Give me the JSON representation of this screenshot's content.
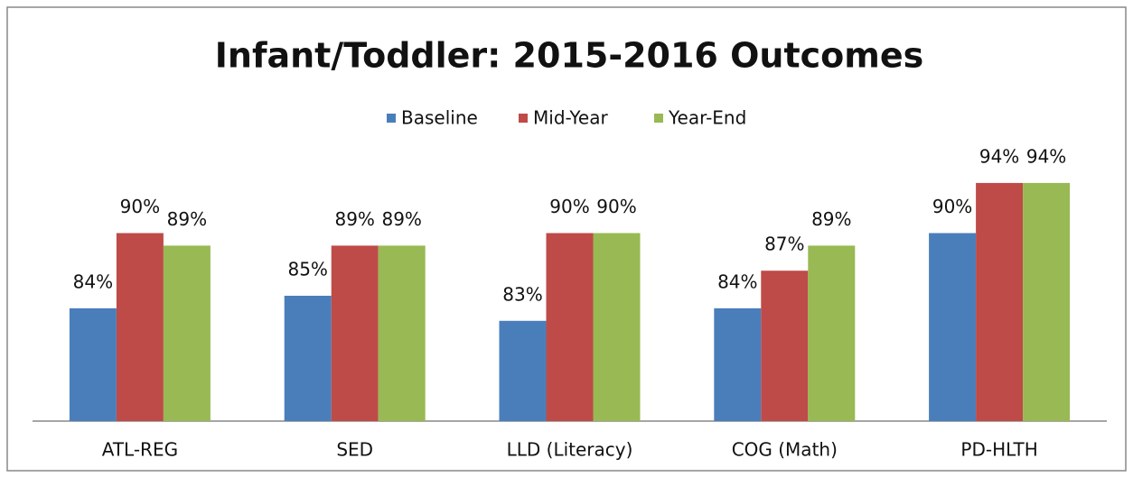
{
  "chart_data": {
    "type": "bar",
    "title": "Infant/Toddler: 2015-2016 Outcomes",
    "categories": [
      "ATL-REG",
      "SED",
      "LLD (Literacy)",
      "COG (Math)",
      "PD-HLTH"
    ],
    "series": [
      {
        "name": "Baseline",
        "color": "#4a7ebb",
        "values": [
          84,
          85,
          83,
          84,
          90
        ],
        "value_labels": [
          "84%",
          "85%",
          "83%",
          "84%",
          "90%"
        ]
      },
      {
        "name": "Mid-Year",
        "color": "#be4b48",
        "values": [
          90,
          89,
          90,
          87,
          94
        ],
        "value_labels": [
          "90%",
          "89%",
          "90%",
          "87%",
          "94%"
        ]
      },
      {
        "name": "Year-End",
        "color": "#98b954",
        "values": [
          89,
          89,
          90,
          89,
          94
        ],
        "value_labels": [
          "89%",
          "89%",
          "90%",
          "89%",
          "94%"
        ]
      }
    ],
    "ylim": [
      75,
      95
    ],
    "legend": "top"
  }
}
